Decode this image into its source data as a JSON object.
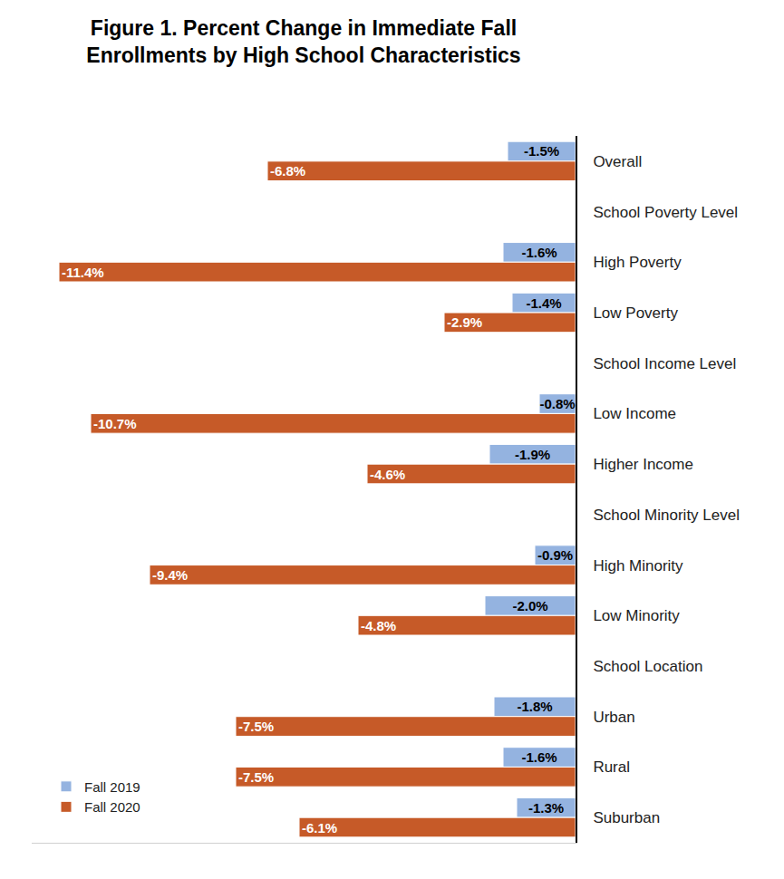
{
  "chart_data": {
    "type": "bar",
    "orientation": "horizontal",
    "title": "Figure 1. Percent Change in Immediate Fall\nEnrollments by High School Characteristics",
    "categories": [
      "Overall",
      "School Poverty Level",
      "High Poverty",
      "Low Poverty",
      "School Income Level",
      "Low Income",
      "Higher Income",
      "School Minority Level",
      "High Minority",
      "Low Minority",
      "School Location",
      "Urban",
      "Rural",
      "Suburban"
    ],
    "series": [
      {
        "name": "Fall 2019",
        "color": "#94b3e0",
        "values": [
          -1.5,
          null,
          -1.6,
          -1.4,
          null,
          -0.8,
          -1.9,
          null,
          -0.9,
          -2.0,
          null,
          -1.8,
          -1.6,
          -1.3
        ],
        "value_labels": [
          "-1.5%",
          null,
          "-1.6%",
          "-1.4%",
          null,
          "-0.8%",
          "-1.9%",
          null,
          "-0.9%",
          "-2.0%",
          null,
          "-1.8%",
          "-1.6%",
          "-1.3%"
        ]
      },
      {
        "name": "Fall 2020",
        "color": "#c65a28",
        "values": [
          -6.8,
          null,
          -11.4,
          -2.9,
          null,
          -10.7,
          -4.6,
          null,
          -9.4,
          -4.8,
          null,
          -7.5,
          -7.5,
          -6.1
        ],
        "value_labels": [
          "-6.8%",
          null,
          "-11.4%",
          "-2.9%",
          null,
          "-10.7%",
          "-4.6%",
          null,
          "-9.4%",
          "-4.8%",
          null,
          "-7.5%",
          "-7.5%",
          "-6.1%"
        ]
      }
    ],
    "xlim": [
      -12,
      0
    ],
    "tick_labels": "y",
    "data_labels": true,
    "grid": false,
    "legend": "bottom left"
  }
}
